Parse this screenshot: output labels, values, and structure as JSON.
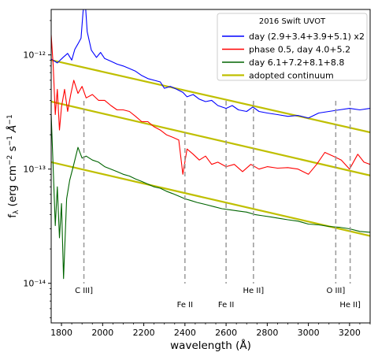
{
  "chart_data": {
    "type": "line",
    "xlabel": "wavelength (Å)",
    "ylabel": "f_λ (erg cm⁻² s⁻¹ Å⁻¹",
    "ylabel_parts": {
      "f": "f",
      "sub": "λ",
      "mid": " (erg cm",
      "e1": "−2",
      "s": " s",
      "e2": "−1",
      "end": " Å",
      "e3": "−1"
    },
    "xlim": [
      1750,
      3300
    ],
    "ylim": [
      4.5e-15,
      2.5e-12
    ],
    "yscale": "log",
    "x_ticks": [
      1800,
      2000,
      2200,
      2400,
      2600,
      2800,
      3000,
      3200
    ],
    "y_ticks": [
      {
        "value": 1e-14,
        "label": "10⁻¹⁴"
      },
      {
        "value": 1e-13,
        "label": "10⁻¹³"
      },
      {
        "value": 1e-12,
        "label": "10⁻¹²"
      }
    ],
    "legend": {
      "title": "2016 Swift UVOT",
      "placement": "upper right",
      "entries": [
        {
          "label": "day (2.9+3.4+3.9+5.1) x2",
          "color": "#0000ff"
        },
        {
          "label": "phase 0.5, day 4.0+5.2",
          "color": "#ff0000"
        },
        {
          "label": "day 6.1+7.2+8.1+8.8",
          "color": "#006400"
        },
        {
          "label": "adopted continuum",
          "color": "#bfbf00"
        }
      ]
    },
    "series": [
      {
        "name": "day (2.9+3.4+3.9+5.1) x2",
        "color": "#0000ff",
        "points": [
          [
            1750,
            9.2e-13
          ],
          [
            1780,
            8.5e-13
          ],
          [
            1810,
            9.6e-13
          ],
          [
            1830,
            1.03e-12
          ],
          [
            1850,
            9e-13
          ],
          [
            1865,
            1.12e-12
          ],
          [
            1880,
            1.25e-12
          ],
          [
            1895,
            1.4e-12
          ],
          [
            1905,
            2.4e-12
          ],
          [
            1915,
            3e-12
          ],
          [
            1925,
            1.6e-12
          ],
          [
            1945,
            1.1e-12
          ],
          [
            1970,
            9.5e-13
          ],
          [
            1990,
            1.05e-12
          ],
          [
            2010,
            9.3e-13
          ],
          [
            2040,
            8.8e-13
          ],
          [
            2070,
            8.3e-13
          ],
          [
            2100,
            8e-13
          ],
          [
            2130,
            7.6e-13
          ],
          [
            2160,
            7.2e-13
          ],
          [
            2190,
            6.6e-13
          ],
          [
            2220,
            6.2e-13
          ],
          [
            2250,
            6e-13
          ],
          [
            2280,
            5.8e-13
          ],
          [
            2300,
            5.1e-13
          ],
          [
            2330,
            5.3e-13
          ],
          [
            2360,
            5e-13
          ],
          [
            2390,
            4.7e-13
          ],
          [
            2410,
            4.3e-13
          ],
          [
            2440,
            4.5e-13
          ],
          [
            2470,
            4.1e-13
          ],
          [
            2500,
            3.9e-13
          ],
          [
            2530,
            4e-13
          ],
          [
            2560,
            3.6e-13
          ],
          [
            2600,
            3.4e-13
          ],
          [
            2630,
            3.6e-13
          ],
          [
            2660,
            3.3e-13
          ],
          [
            2700,
            3.2e-13
          ],
          [
            2730,
            3.5e-13
          ],
          [
            2760,
            3.2e-13
          ],
          [
            2800,
            3.1e-13
          ],
          [
            2850,
            3e-13
          ],
          [
            2900,
            2.9e-13
          ],
          [
            2950,
            2.95e-13
          ],
          [
            3000,
            2.8e-13
          ],
          [
            3050,
            3.1e-13
          ],
          [
            3100,
            3.2e-13
          ],
          [
            3150,
            3.3e-13
          ],
          [
            3200,
            3.4e-13
          ],
          [
            3250,
            3.3e-13
          ],
          [
            3300,
            3.4e-13
          ]
        ]
      },
      {
        "name": "phase 0.5, day 4.0+5.2",
        "color": "#ff0000",
        "points": [
          [
            1750,
            1.5e-12
          ],
          [
            1760,
            8e-13
          ],
          [
            1770,
            3e-13
          ],
          [
            1780,
            5e-13
          ],
          [
            1790,
            2.2e-13
          ],
          [
            1800,
            3.5e-13
          ],
          [
            1815,
            5e-13
          ],
          [
            1830,
            3.2e-13
          ],
          [
            1845,
            4.5e-13
          ],
          [
            1860,
            6e-13
          ],
          [
            1880,
            4.6e-13
          ],
          [
            1900,
            5.3e-13
          ],
          [
            1920,
            4.2e-13
          ],
          [
            1950,
            4.5e-13
          ],
          [
            1980,
            4e-13
          ],
          [
            2010,
            4e-13
          ],
          [
            2040,
            3.6e-13
          ],
          [
            2070,
            3.3e-13
          ],
          [
            2100,
            3.3e-13
          ],
          [
            2130,
            3.2e-13
          ],
          [
            2160,
            2.9e-13
          ],
          [
            2190,
            2.6e-13
          ],
          [
            2220,
            2.6e-13
          ],
          [
            2250,
            2.35e-13
          ],
          [
            2280,
            2.2e-13
          ],
          [
            2310,
            2e-13
          ],
          [
            2340,
            1.9e-13
          ],
          [
            2370,
            1.8e-13
          ],
          [
            2390,
            9e-14
          ],
          [
            2410,
            1.5e-13
          ],
          [
            2440,
            1.35e-13
          ],
          [
            2470,
            1.2e-13
          ],
          [
            2500,
            1.3e-13
          ],
          [
            2530,
            1.1e-13
          ],
          [
            2560,
            1.15e-13
          ],
          [
            2600,
            1.05e-13
          ],
          [
            2640,
            1.1e-13
          ],
          [
            2680,
            9.5e-14
          ],
          [
            2720,
            1.1e-13
          ],
          [
            2760,
            1e-13
          ],
          [
            2800,
            1.05e-13
          ],
          [
            2850,
            1.02e-13
          ],
          [
            2900,
            1.03e-13
          ],
          [
            2950,
            1e-13
          ],
          [
            3000,
            9e-14
          ],
          [
            3040,
            1.1e-13
          ],
          [
            3080,
            1.4e-13
          ],
          [
            3120,
            1.3e-13
          ],
          [
            3160,
            1.2e-13
          ],
          [
            3200,
            1e-13
          ],
          [
            3240,
            1.35e-13
          ],
          [
            3270,
            1.15e-13
          ],
          [
            3300,
            1.1e-13
          ]
        ]
      },
      {
        "name": "day 6.1+7.2+8.1+8.8",
        "color": "#006400",
        "points": [
          [
            1750,
            3e-13
          ],
          [
            1760,
            1e-13
          ],
          [
            1770,
            3.2e-14
          ],
          [
            1780,
            7e-14
          ],
          [
            1790,
            2.5e-14
          ],
          [
            1800,
            5e-14
          ],
          [
            1810,
            1.1e-14
          ],
          [
            1825,
            5.5e-14
          ],
          [
            1840,
            8e-14
          ],
          [
            1860,
            1.1e-13
          ],
          [
            1880,
            1.55e-13
          ],
          [
            1900,
            1.25e-13
          ],
          [
            1920,
            1.3e-13
          ],
          [
            1950,
            1.2e-13
          ],
          [
            1980,
            1.15e-13
          ],
          [
            2010,
            1.05e-13
          ],
          [
            2040,
            1e-13
          ],
          [
            2070,
            9.5e-14
          ],
          [
            2100,
            9e-14
          ],
          [
            2130,
            8.7e-14
          ],
          [
            2160,
            8.2e-14
          ],
          [
            2190,
            7.8e-14
          ],
          [
            2220,
            7.4e-14
          ],
          [
            2250,
            7e-14
          ],
          [
            2280,
            6.8e-14
          ],
          [
            2310,
            6.4e-14
          ],
          [
            2340,
            6.1e-14
          ],
          [
            2370,
            5.8e-14
          ],
          [
            2400,
            5.5e-14
          ],
          [
            2430,
            5.3e-14
          ],
          [
            2460,
            5.1e-14
          ],
          [
            2500,
            4.9e-14
          ],
          [
            2540,
            4.7e-14
          ],
          [
            2580,
            4.5e-14
          ],
          [
            2620,
            4.4e-14
          ],
          [
            2660,
            4.3e-14
          ],
          [
            2700,
            4.2e-14
          ],
          [
            2740,
            4e-14
          ],
          [
            2780,
            3.9e-14
          ],
          [
            2820,
            3.8e-14
          ],
          [
            2860,
            3.7e-14
          ],
          [
            2900,
            3.6e-14
          ],
          [
            2950,
            3.5e-14
          ],
          [
            3000,
            3.3e-14
          ],
          [
            3050,
            3.25e-14
          ],
          [
            3100,
            3.15e-14
          ],
          [
            3150,
            3.1e-14
          ],
          [
            3200,
            3e-14
          ],
          [
            3250,
            2.85e-14
          ],
          [
            3300,
            2.8e-14
          ]
        ]
      }
    ],
    "continua": [
      {
        "name": "adopted continuum",
        "color": "#bfbf00",
        "points": [
          [
            1750,
            9e-13
          ],
          [
            3300,
            2.1e-13
          ]
        ]
      },
      {
        "name": "adopted continuum",
        "color": "#bfbf00",
        "points": [
          [
            1750,
            3.9e-13
          ],
          [
            3300,
            8.8e-14
          ]
        ]
      },
      {
        "name": "adopted continuum",
        "color": "#bfbf00",
        "points": [
          [
            1750,
            1.15e-13
          ],
          [
            3300,
            2.6e-14
          ]
        ]
      }
    ],
    "line_markers": [
      {
        "x": 1909,
        "label": "C III]",
        "label_row": 1
      },
      {
        "x": 2400,
        "label": "Fe II",
        "label_row": 2
      },
      {
        "x": 2600,
        "label": "Fe II",
        "label_row": 2
      },
      {
        "x": 2733,
        "label": "He II]",
        "label_row": 1
      },
      {
        "x": 3133,
        "label": "O III]",
        "label_row": 1
      },
      {
        "x": 3203,
        "label": "He II]",
        "label_row": 2
      }
    ]
  }
}
